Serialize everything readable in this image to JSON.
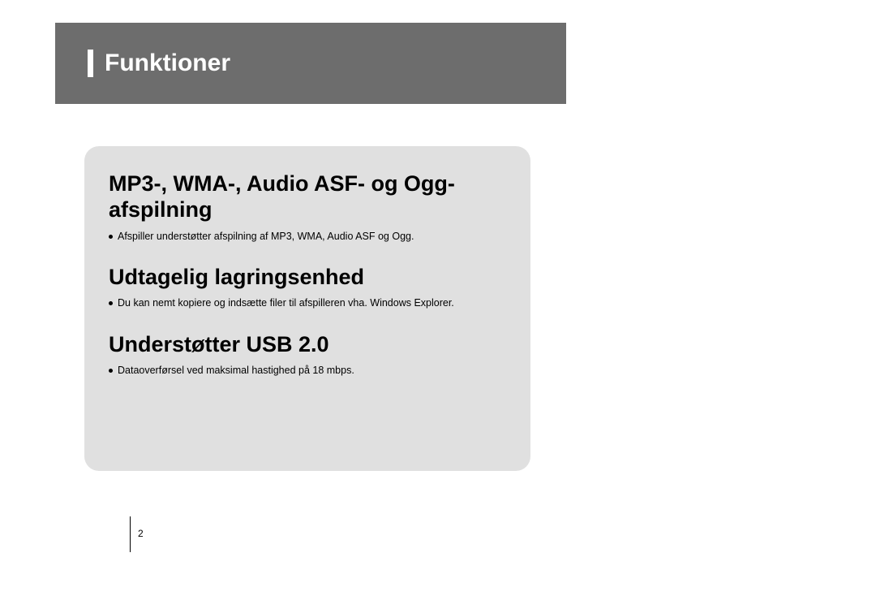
{
  "header": {
    "title": "Funktioner",
    "bar_color": "#6d6d6d",
    "accent_color": "#ffffff",
    "title_color": "#ffffff",
    "title_fontsize": 30
  },
  "feature_box": {
    "background_color": "#e0e0e0",
    "border_radius": 18
  },
  "features": [
    {
      "title": "MP3-, WMA-, Audio ASF- og Ogg-afspilning",
      "bullets": [
        "Afspiller understøtter afspilning af MP3, WMA, Audio ASF og Ogg."
      ]
    },
    {
      "title": "Udtagelig lagringsenhed",
      "bullets": [
        "Du kan nemt kopiere og indsætte filer til afspilleren vha. Windows Explorer."
      ]
    },
    {
      "title": "Understøtter USB 2.0",
      "bullets": [
        "Dataoverførsel ved maksimal hastighed på 18 mbps."
      ]
    }
  ],
  "typography": {
    "title_fontsize": 27,
    "title_weight": "bold",
    "bullet_fontsize": 12.5,
    "text_color": "#000000"
  },
  "footer": {
    "page_number": "2",
    "divider_color": "#000000"
  },
  "colors": {
    "page_background": "#ffffff"
  }
}
